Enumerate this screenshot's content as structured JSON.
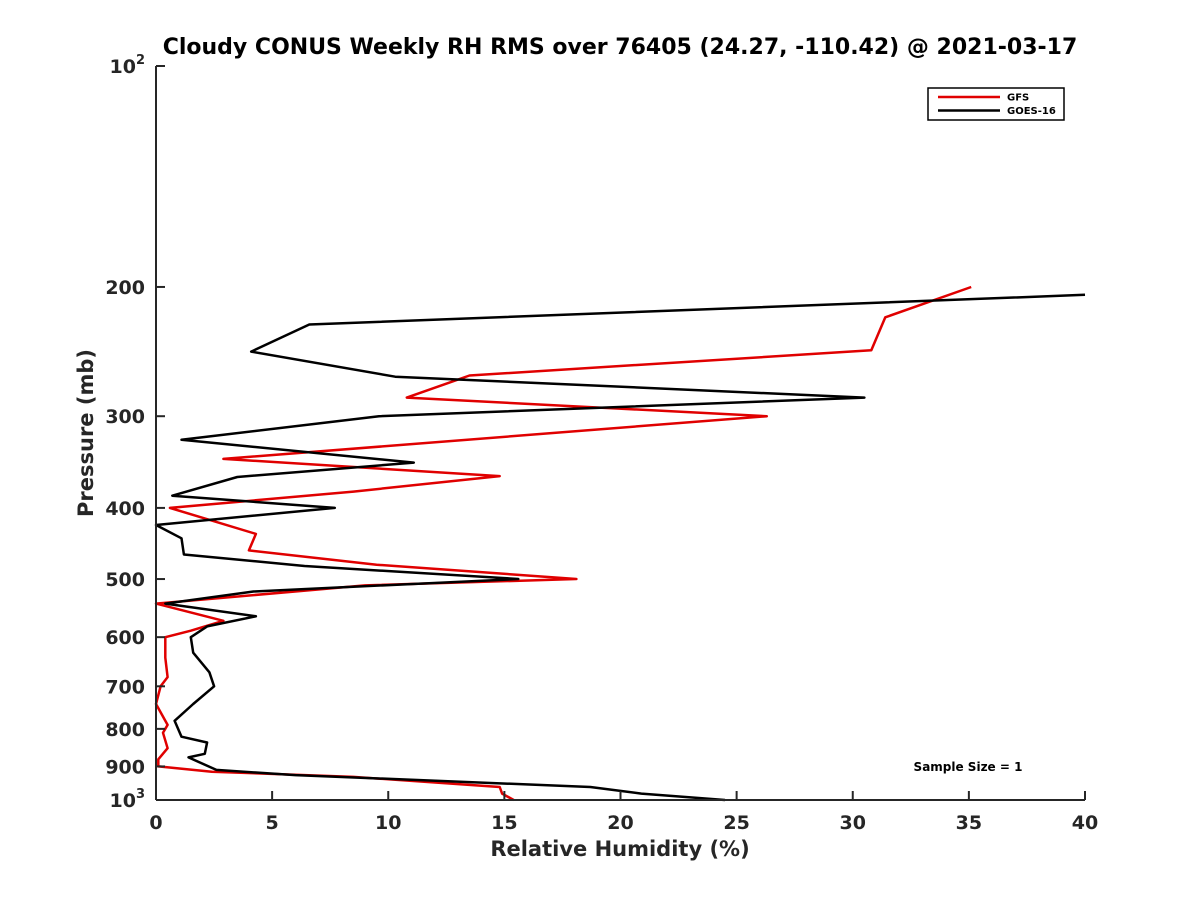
{
  "chart_data": {
    "type": "line",
    "title": "Cloudy CONUS Weekly RH RMS over 76405 (24.27, -110.42) @ 2021-03-17",
    "xlabel": "Relative Humidity (%)",
    "ylabel": "Pressure (mb)",
    "xlim": [
      0,
      40
    ],
    "ylim": [
      1000,
      100
    ],
    "yscale": "log-reversed",
    "x_ticks": [
      "0",
      "5",
      "10",
      "15",
      "20",
      "25",
      "30",
      "35",
      "40"
    ],
    "y_ticks": [
      {
        "value": 100,
        "base": "10",
        "exp": "2"
      },
      {
        "value": 200,
        "label": "200"
      },
      {
        "value": 300,
        "label": "300"
      },
      {
        "value": 400,
        "label": "400"
      },
      {
        "value": 500,
        "label": "500"
      },
      {
        "value": 600,
        "label": "600"
      },
      {
        "value": 700,
        "label": "700"
      },
      {
        "value": 800,
        "label": "800"
      },
      {
        "value": 900,
        "label": "900"
      },
      {
        "value": 1000,
        "base": "10",
        "exp": "3"
      }
    ],
    "legend_position": "top-right",
    "annotation": "Sample Size = 1",
    "series": [
      {
        "name": "GFS",
        "color": "#e00000",
        "points": [
          [
            35.1,
            200
          ],
          [
            31.4,
            220
          ],
          [
            30.8,
            244
          ],
          [
            13.5,
            264
          ],
          [
            10.8,
            283
          ],
          [
            26.3,
            300
          ],
          [
            2.9,
            343
          ],
          [
            14.8,
            362
          ],
          [
            8.5,
            380
          ],
          [
            0.6,
            400
          ],
          [
            4.3,
            434
          ],
          [
            4.0,
            457
          ],
          [
            9.5,
            478
          ],
          [
            18.1,
            500
          ],
          [
            9.0,
            510
          ],
          [
            0,
            540
          ],
          [
            2.9,
            570
          ],
          [
            1.5,
            588
          ],
          [
            0.4,
            600
          ],
          [
            0.4,
            640
          ],
          [
            0.5,
            680
          ],
          [
            0.2,
            700
          ],
          [
            0,
            740
          ],
          [
            0.5,
            790
          ],
          [
            0.3,
            810
          ],
          [
            0.5,
            850
          ],
          [
            0.1,
            880
          ],
          [
            0.1,
            900
          ],
          [
            2.4,
            915
          ],
          [
            8.5,
            930
          ],
          [
            14.8,
            960
          ],
          [
            14.9,
            980
          ],
          [
            15.4,
            1000
          ]
        ]
      },
      {
        "name": "GOES-16",
        "color": "#000000",
        "points": [
          [
            40.0,
            205
          ],
          [
            6.6,
            225
          ],
          [
            4.1,
            245
          ],
          [
            10.3,
            265
          ],
          [
            30.5,
            283
          ],
          [
            9.6,
            300
          ],
          [
            1.1,
            323
          ],
          [
            11.1,
            347
          ],
          [
            3.5,
            363
          ],
          [
            0.7,
            385
          ],
          [
            7.7,
            400
          ],
          [
            0,
            422
          ],
          [
            1.1,
            440
          ],
          [
            1.2,
            463
          ],
          [
            6.4,
            480
          ],
          [
            15.6,
            500
          ],
          [
            4.2,
            520
          ],
          [
            0.4,
            540
          ],
          [
            4.3,
            562
          ],
          [
            2.2,
            580
          ],
          [
            1.5,
            600
          ],
          [
            1.6,
            630
          ],
          [
            2.3,
            670
          ],
          [
            2.5,
            700
          ],
          [
            1.6,
            740
          ],
          [
            0.8,
            780
          ],
          [
            1.1,
            820
          ],
          [
            2.2,
            835
          ],
          [
            2.1,
            865
          ],
          [
            1.4,
            875
          ],
          [
            2.6,
            910
          ],
          [
            6.0,
            925
          ],
          [
            18.7,
            960
          ],
          [
            20.9,
            980
          ],
          [
            24.5,
            1000
          ]
        ]
      }
    ]
  }
}
